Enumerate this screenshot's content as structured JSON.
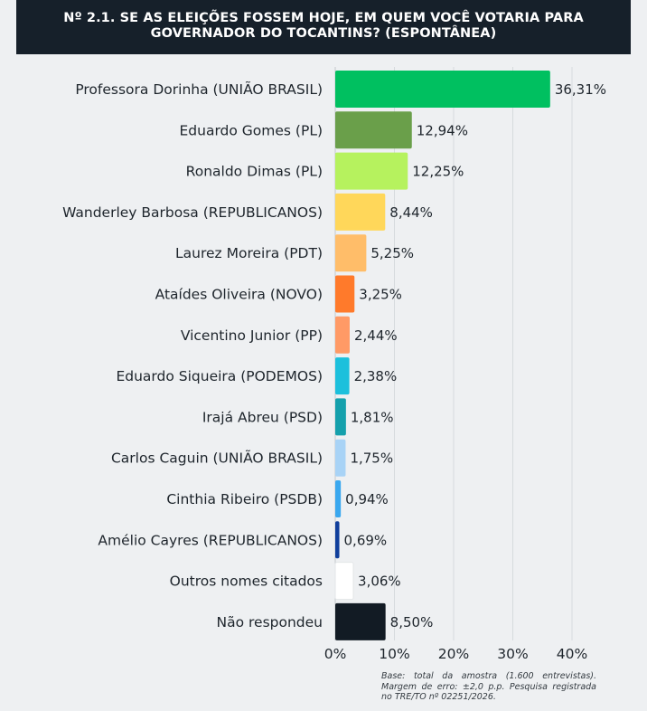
{
  "chart_data": {
    "type": "bar",
    "orientation": "horizontal",
    "title": "Nº 2.1. SE AS ELEIÇÕES FOSSEM HOJE, EM QUEM VOCÊ VOTARIA PARA GOVERNADOR DO TOCANTINS? (ESPONTÂNEA)",
    "categories": [
      "Professora Dorinha (UNIÃO BRASIL)",
      "Eduardo Gomes (PL)",
      "Ronaldo Dimas (PL)",
      "Wanderley Barbosa (REPUBLICANOS)",
      "Laurez Moreira (PDT)",
      "Ataídes Oliveira (NOVO)",
      "Vicentino Junior (PP)",
      "Eduardo Siqueira (PODEMOS)",
      "Irajá Abreu (PSD)",
      "Carlos Caguin (UNIÃO BRASIL)",
      "Cinthia Ribeiro (PSDB)",
      "Amélio Cayres (REPUBLICANOS)",
      "Outros nomes citados",
      "Não respondeu"
    ],
    "values": [
      36.31,
      12.94,
      12.25,
      8.44,
      5.25,
      3.25,
      2.44,
      2.38,
      1.81,
      1.75,
      0.94,
      0.69,
      3.06,
      8.5
    ],
    "value_labels": [
      "36,31%",
      "12,94%",
      "12,25%",
      "8,44%",
      "5,25%",
      "3,25%",
      "2,44%",
      "2,38%",
      "1,81%",
      "1,75%",
      "0,94%",
      "0,69%",
      "3,06%",
      "8,50%"
    ],
    "colors": [
      "#00c060",
      "#6a9f4a",
      "#b6f25e",
      "#ffd75a",
      "#ffbd69",
      "#ff7a2b",
      "#ff9a66",
      "#1cc0dc",
      "#14a0ac",
      "#a8d3f6",
      "#3aa8ef",
      "#103f9c",
      "#ffffff",
      "#121b24"
    ],
    "xlim": [
      0,
      40
    ],
    "xticks": [
      0,
      10,
      20,
      30,
      40
    ],
    "xtick_labels": [
      "0%",
      "10%",
      "20%",
      "30%",
      "40%"
    ],
    "grid": "vertical",
    "legend": "none"
  },
  "note": "Base: total da amostra (1.600 entrevistas). Margem de erro: ±2,0 p.p. Pesquisa registrada no TRE/TO nº 02251/2026."
}
